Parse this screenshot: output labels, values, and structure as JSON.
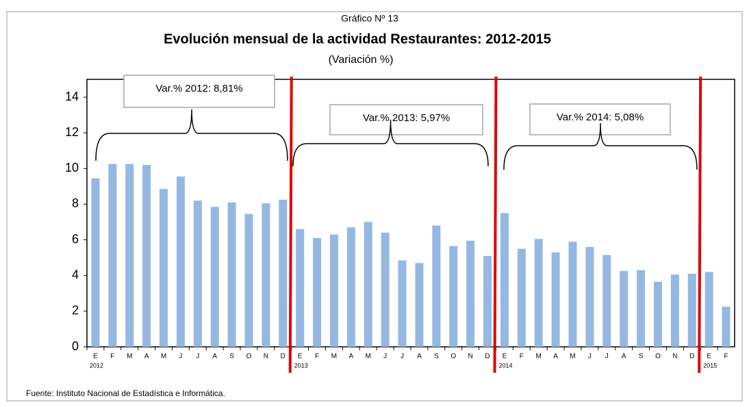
{
  "chart_data": {
    "type": "bar",
    "supertitle": "Gráfico Nº 13",
    "title": "Evolución mensual  de la actividad  Restaurantes: 2012-2015",
    "subtitle": "(Variación %)",
    "categories": [
      "E",
      "F",
      "M",
      "A",
      "M",
      "J",
      "J",
      "A",
      "S",
      "O",
      "N",
      "D",
      "E",
      "F",
      "M",
      "A",
      "M",
      "J",
      "J",
      "A",
      "S",
      "O",
      "N",
      "D",
      "E",
      "F",
      "M",
      "A",
      "M",
      "J",
      "J",
      "A",
      "S",
      "O",
      "N",
      "D",
      "E",
      "F"
    ],
    "years": [
      "2012",
      "2013",
      "2014",
      "2015"
    ],
    "values": [
      9.45,
      10.25,
      10.25,
      10.2,
      8.85,
      9.55,
      8.2,
      7.85,
      8.1,
      7.45,
      8.05,
      8.25,
      6.6,
      6.1,
      6.3,
      6.7,
      7.0,
      6.4,
      4.85,
      4.7,
      6.8,
      5.65,
      5.95,
      5.1,
      7.5,
      5.5,
      6.05,
      5.3,
      5.9,
      5.6,
      5.15,
      4.25,
      4.3,
      3.65,
      4.05,
      4.1,
      4.2,
      2.25
    ],
    "color": "#95b8e3",
    "ylim": [
      0,
      15
    ],
    "yticks": [
      0,
      2,
      4,
      6,
      8,
      10,
      12,
      14
    ],
    "annotations": [
      "Var.% 2012: 8,81%",
      "Var.% 2013: 5,97%",
      "Var.% 2014: 5,08%"
    ],
    "source": "Fuente: Instituto Nacional de Estadística e Informática."
  }
}
